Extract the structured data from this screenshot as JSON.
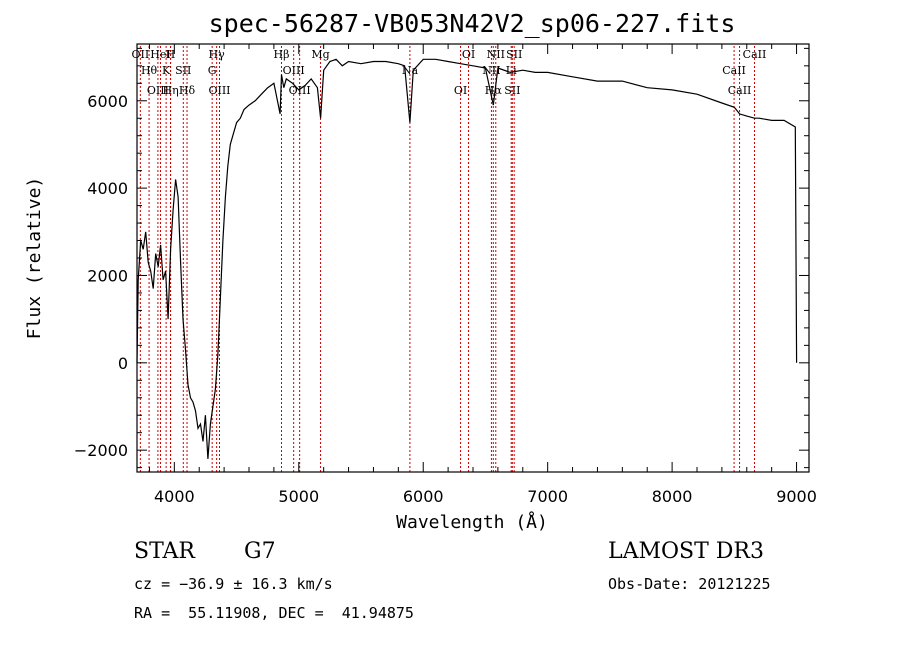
{
  "chart_data": {
    "type": "line",
    "title": "spec-56287-VB053N42V2_sp06-227.fits",
    "xlabel": "Wavelength (Å)",
    "ylabel": "Flux (relative)",
    "xlim": [
      3700,
      9100
    ],
    "ylim": [
      -2500,
      7300
    ],
    "x_ticks": [
      4000,
      5000,
      6000,
      7000,
      8000,
      9000
    ],
    "y_ticks": [
      -2000,
      0,
      2000,
      4000,
      6000
    ],
    "grid": false,
    "line_color": "#000000",
    "marker_color": "#cc0000",
    "series": [
      {
        "x": [
          3700,
          3710,
          3730,
          3750,
          3770,
          3790,
          3810,
          3830,
          3850,
          3870,
          3890,
          3910,
          3930,
          3950,
          3970,
          3990,
          4010,
          4030,
          4050,
          4070,
          4090,
          4110,
          4130,
          4150,
          4170,
          4190,
          4210,
          4230,
          4250,
          4270,
          4290,
          4310,
          4330,
          4350,
          4370,
          4390,
          4410,
          4430,
          4450,
          4470,
          4500,
          4530,
          4560,
          4600,
          4650,
          4700,
          4750,
          4800,
          4850,
          4861,
          4880,
          4900,
          4950,
          5000,
          5050,
          5100,
          5150,
          5175,
          5200,
          5250,
          5300,
          5350,
          5400,
          5500,
          5600,
          5700,
          5800,
          5850,
          5893,
          5920,
          6000,
          6100,
          6200,
          6300,
          6400,
          6500,
          6563,
          6600,
          6700,
          6800,
          6900,
          7000,
          7200,
          7400,
          7600,
          7800,
          8000,
          8200,
          8400,
          8500,
          8542,
          8600,
          8662,
          8700,
          8800,
          8900,
          8990,
          9000
        ],
        "y": [
          0,
          1900,
          2800,
          2600,
          3000,
          2300,
          2100,
          1700,
          2500,
          2200,
          2700,
          1900,
          2100,
          1000,
          2600,
          3500,
          4200,
          3800,
          2300,
          1000,
          300,
          -500,
          -800,
          -900,
          -1100,
          -1500,
          -1400,
          -1800,
          -1200,
          -2200,
          -1400,
          -1000,
          -600,
          200,
          1500,
          2800,
          3800,
          4500,
          5000,
          5200,
          5500,
          5600,
          5800,
          5900,
          6000,
          6150,
          6300,
          6400,
          5700,
          6600,
          6300,
          6500,
          6400,
          6250,
          6350,
          6500,
          6300,
          5600,
          6700,
          6900,
          6950,
          6800,
          6900,
          6850,
          6900,
          6900,
          6850,
          6800,
          5500,
          6700,
          6950,
          6950,
          6900,
          6850,
          6800,
          6750,
          5900,
          6750,
          6650,
          6700,
          6650,
          6650,
          6550,
          6450,
          6450,
          6300,
          6250,
          6150,
          5950,
          5850,
          5700,
          5650,
          5600,
          5600,
          5550,
          5550,
          5400,
          0
        ]
      }
    ],
    "lines": [
      {
        "label": "OII",
        "x": 3727
      },
      {
        "label": "Hθ",
        "x": 3797
      },
      {
        "label": "OIII",
        "x": 3868
      },
      {
        "label": "HeI",
        "x": 3889
      },
      {
        "label": "K",
        "x": 3934
      },
      {
        "label": "Hη",
        "x": 3970
      },
      {
        "label": "H",
        "x": 3969
      },
      {
        "label": "SII",
        "x": 4072
      },
      {
        "label": "Hδ",
        "x": 4102
      },
      {
        "label": "Hγ",
        "x": 4340
      },
      {
        "label": "G",
        "x": 4304
      },
      {
        "label": "OIII",
        "x": 4363
      },
      {
        "label": "Hβ",
        "x": 4861
      },
      {
        "label": "OIII",
        "x": 4959
      },
      {
        "label": "OIII",
        "x": 5007
      },
      {
        "label": "Mg",
        "x": 5175
      },
      {
        "label": "Na",
        "x": 5893
      },
      {
        "label": "OI",
        "x": 6300
      },
      {
        "label": "OI",
        "x": 6364
      },
      {
        "label": "NII",
        "x": 6548
      },
      {
        "label": "Hα",
        "x": 6563
      },
      {
        "label": "NII",
        "x": 6583
      },
      {
        "label": "Li",
        "x": 6707
      },
      {
        "label": "SII",
        "x": 6716
      },
      {
        "label": "SII",
        "x": 6731
      },
      {
        "label": "CaII",
        "x": 8498
      },
      {
        "label": "CaII",
        "x": 8542
      },
      {
        "label": "CaII",
        "x": 8662
      }
    ]
  },
  "info": {
    "class": "STAR",
    "subclass": "G7",
    "survey": "LAMOST DR3",
    "cz": "cz = −36.9 ± 16.3 km/s",
    "obs_date": "Obs-Date: 20121225",
    "coords": "RA =  55.11908, DEC =  41.94875"
  }
}
